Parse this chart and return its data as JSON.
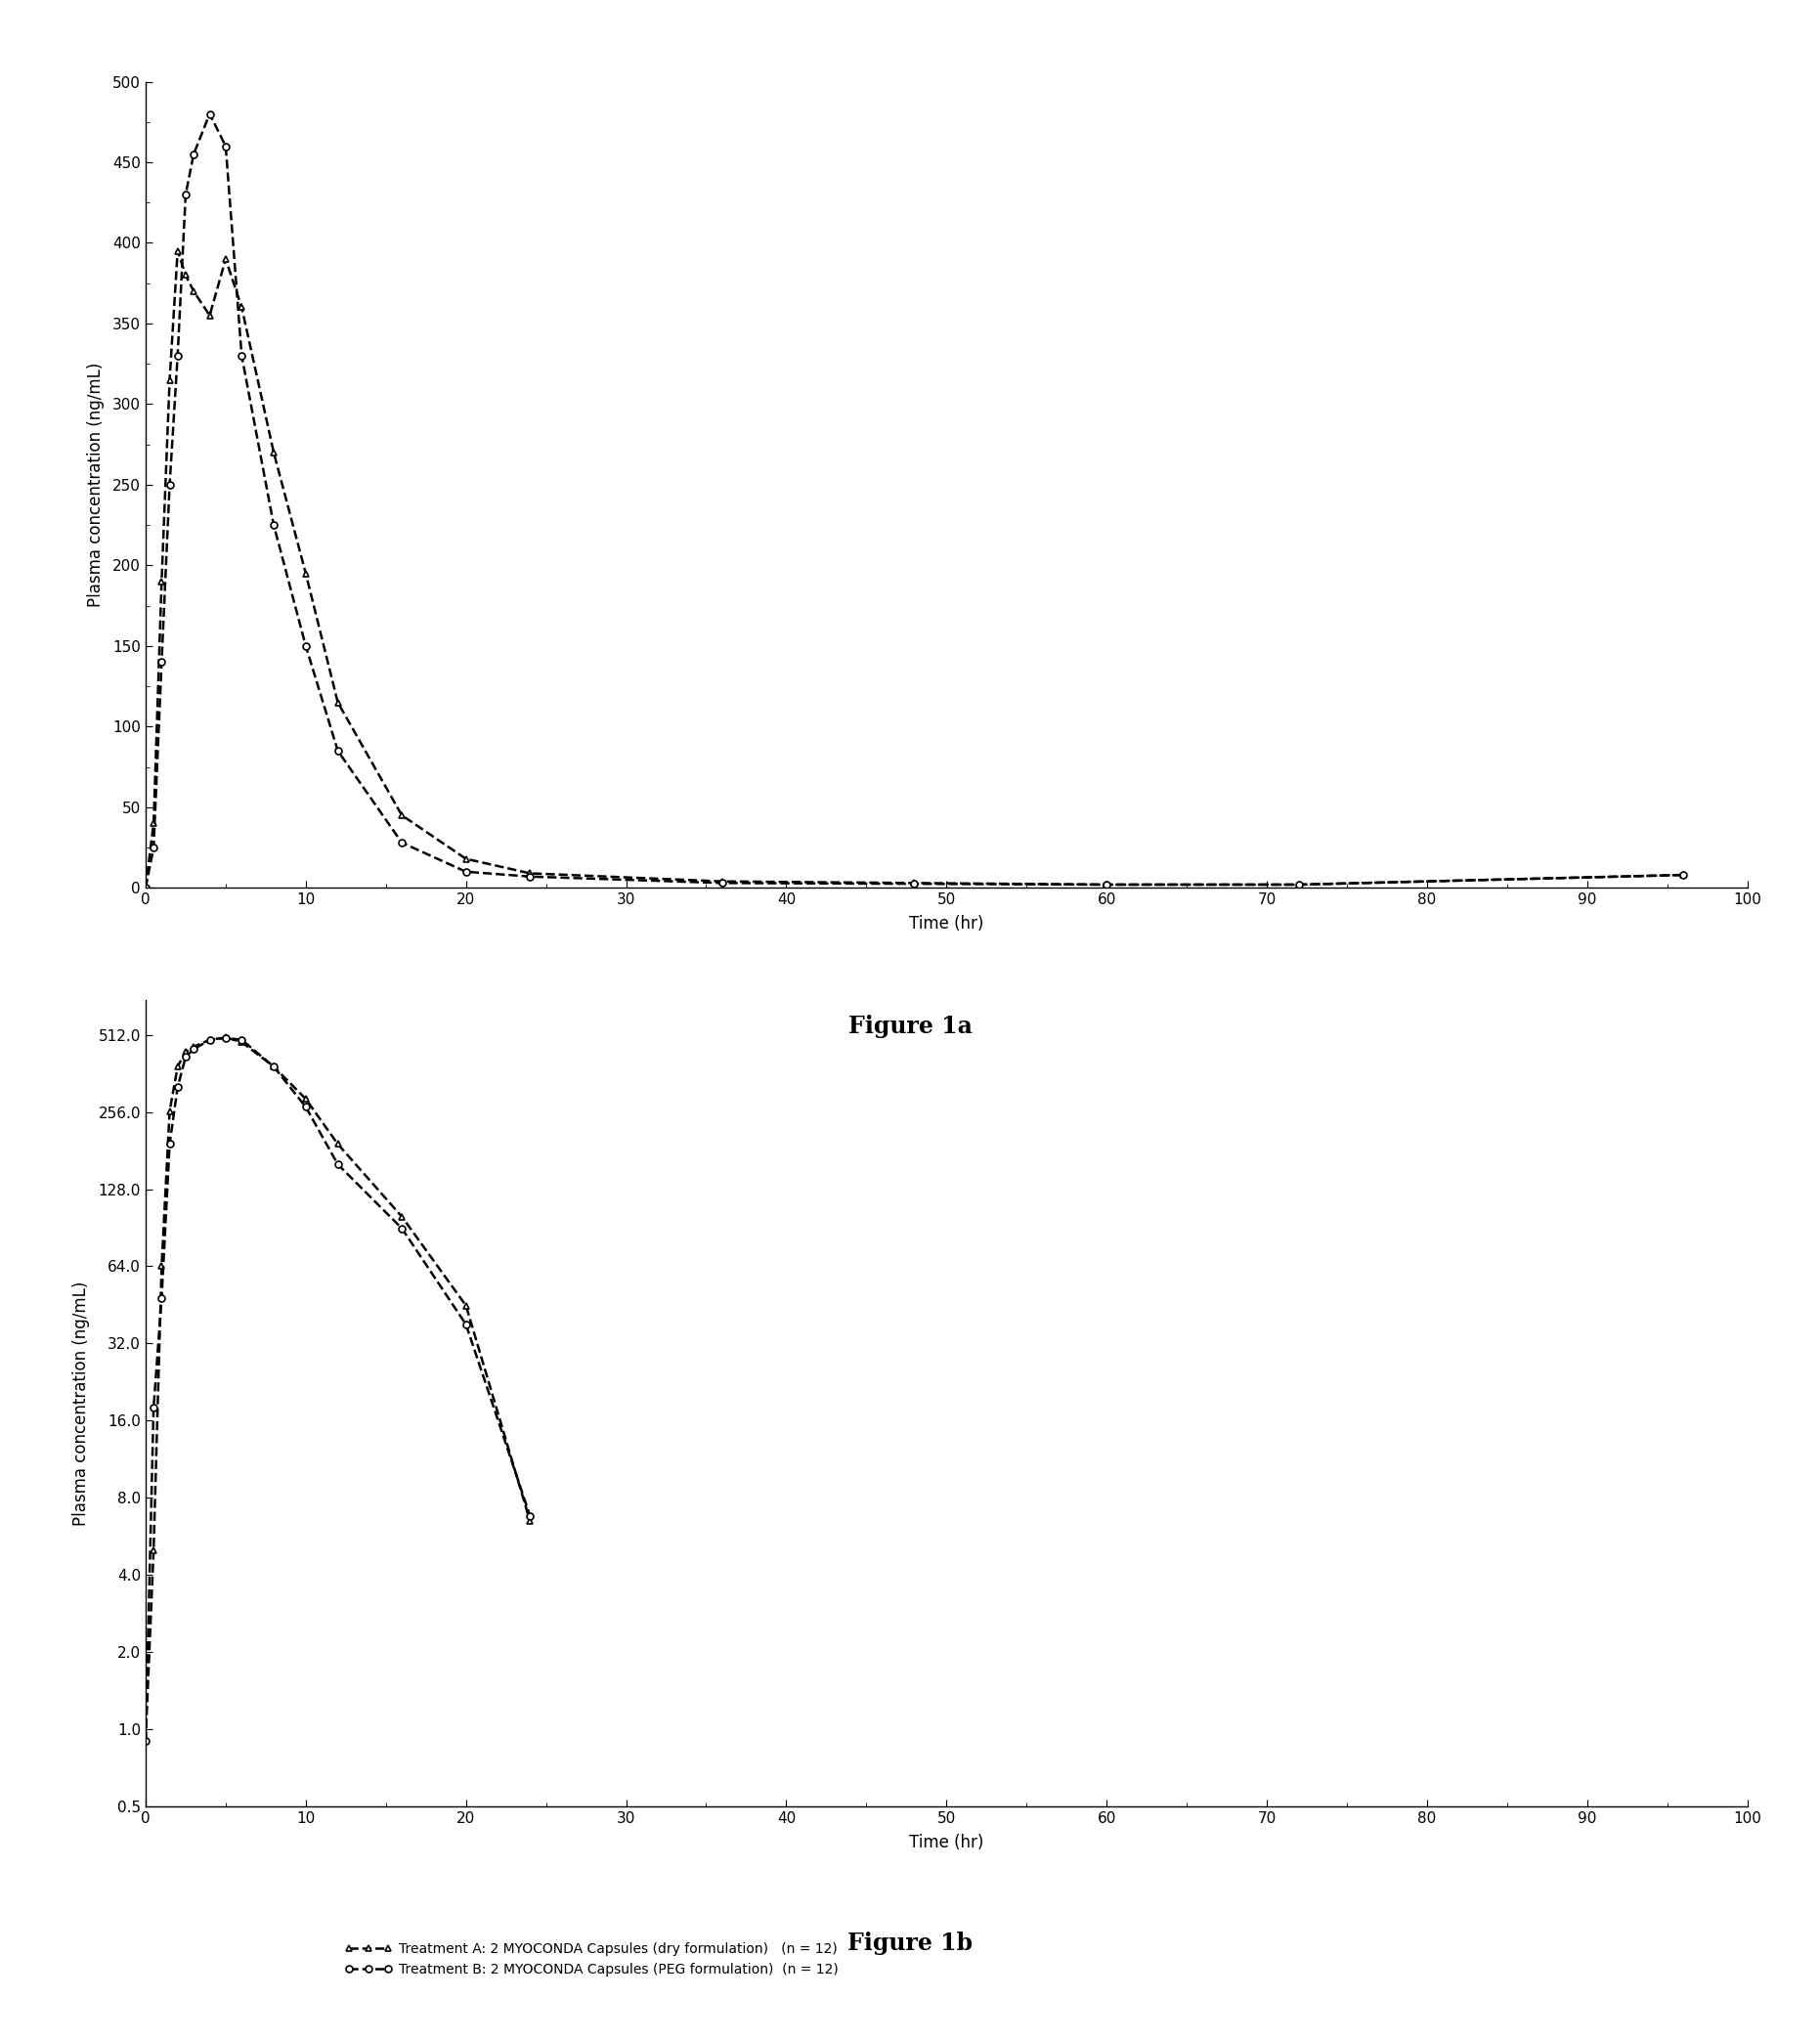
{
  "fig1a": {
    "title": "Figure 1a",
    "xlabel": "Time (hr)",
    "ylabel": "Plasma concentration (ng/mL)",
    "xlim": [
      0,
      100
    ],
    "ylim": [
      0,
      500
    ],
    "yticks": [
      0,
      50,
      100,
      150,
      200,
      250,
      300,
      350,
      400,
      450,
      500
    ],
    "xticks": [
      0,
      10,
      20,
      30,
      40,
      50,
      60,
      70,
      80,
      90,
      100
    ],
    "treatA_x": [
      0,
      0.5,
      1,
      1.5,
      2,
      2.5,
      3,
      4,
      5,
      6,
      8,
      10,
      12,
      16,
      20,
      24,
      36,
      48,
      60,
      72,
      96
    ],
    "treatA_y": [
      0,
      40,
      190,
      315,
      395,
      380,
      370,
      355,
      390,
      360,
      270,
      195,
      115,
      45,
      18,
      9,
      4,
      3,
      2,
      2,
      8
    ],
    "treatB_x": [
      0,
      0.5,
      1,
      1.5,
      2,
      2.5,
      3,
      4,
      5,
      6,
      8,
      10,
      12,
      16,
      20,
      24,
      36,
      48,
      60,
      72,
      96
    ],
    "treatB_y": [
      0,
      25,
      140,
      250,
      330,
      430,
      455,
      480,
      460,
      330,
      225,
      150,
      85,
      28,
      10,
      7,
      3,
      2.5,
      2,
      2,
      8
    ],
    "legend_a": "Treatment A: 2 MYOCONDA Capsules (dry formulation)   (n = 12)",
    "legend_b": "Treatment B: 2 MYOCONDA Capsules (PEG formulation)  (n = 12)"
  },
  "fig1b": {
    "title": "Figure 1b",
    "xlabel": "Time (hr)",
    "ylabel": "Plasma concentration (ng/mL)",
    "xlim": [
      0,
      100
    ],
    "ylim_log": [
      0.5,
      700
    ],
    "yticks_log": [
      0.5,
      1.0,
      2.0,
      4.0,
      8.0,
      16.0,
      32.0,
      64.0,
      128.0,
      256.0,
      512.0
    ],
    "ytick_labels_log": [
      "0.5",
      "1.0",
      "2.0",
      "4.0",
      "8.0",
      "16.0",
      "32.0",
      "64.0",
      "128.0",
      "256.0",
      "512.0"
    ],
    "xticks": [
      0,
      10,
      20,
      30,
      40,
      50,
      60,
      70,
      80,
      90,
      100
    ],
    "treatA_x": [
      0,
      0.5,
      1,
      1.5,
      2,
      2.5,
      3,
      4,
      5,
      6,
      8,
      10,
      12,
      16,
      20,
      24
    ],
    "treatA_y": [
      0.9,
      5.0,
      64,
      258,
      385,
      440,
      460,
      490,
      500,
      480,
      385,
      288,
      192,
      100,
      45,
      6.5
    ],
    "treatB_x": [
      0,
      0.5,
      1,
      1.5,
      2,
      2.5,
      3,
      4,
      5,
      6,
      8,
      10,
      12,
      16,
      20,
      24
    ],
    "treatB_y": [
      0.9,
      18,
      48,
      192,
      320,
      420,
      450,
      490,
      498,
      490,
      385,
      268,
      160,
      90,
      38,
      6.8
    ],
    "legend_a": "Treatment A: 2 MYOCONDA Capsules (dry formulation)   (n = 12)",
    "legend_b": "Treatment B: 2 MYOCONDA Capsules (PEG formulation)  (n = 12)"
  },
  "background_color": "#ffffff",
  "line_color": "#000000",
  "marker_A": "^",
  "marker_B": "o",
  "linewidth": 1.8,
  "markersize": 5,
  "title_fontsize": 17,
  "label_fontsize": 12,
  "tick_fontsize": 11,
  "legend_fontsize": 10
}
